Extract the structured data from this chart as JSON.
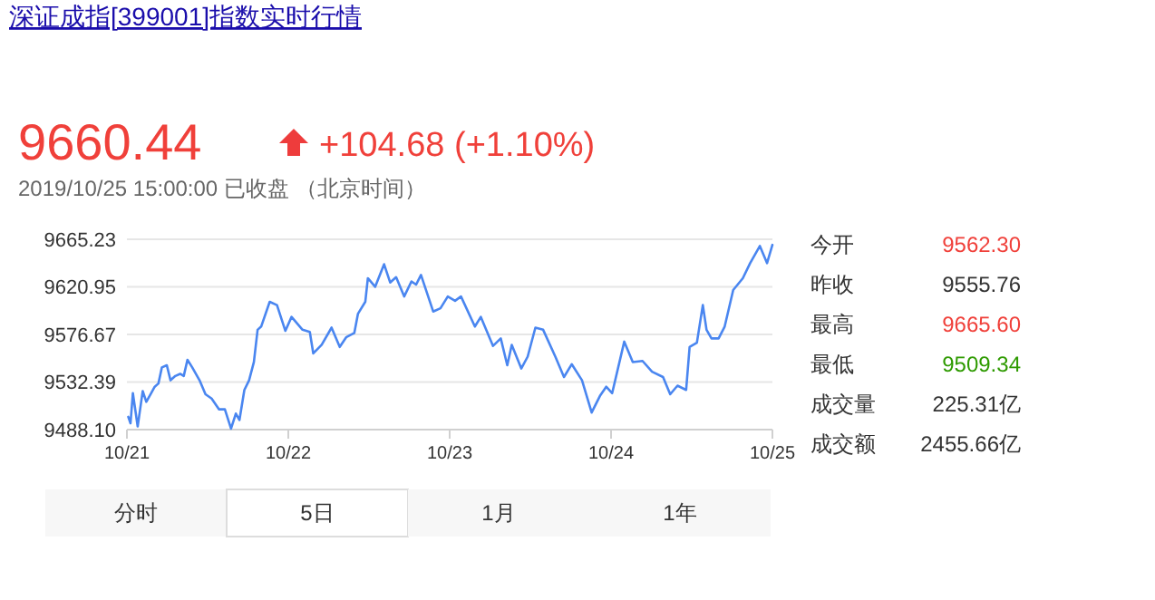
{
  "chart_data": {
    "type": "line",
    "title": "深证成指[399001]指数实时行情",
    "annotations": [
      "9660.44",
      "+104.68 (+1.10%)",
      "2019/10/25 15:00:00  已收盘 （北京时间）",
      "今开",
      "9562.30",
      "昨收",
      "9555.76",
      "最高",
      "9665.60",
      "最低",
      "9509.34",
      "成交量",
      "225.31亿",
      "成交额",
      "2455.66亿",
      "分时",
      "5日",
      "1月",
      "1年"
    ],
    "x": [
      "2019-10-21T00:12",
      "2019-10-21T00:32",
      "2019-10-21T00:53",
      "2019-10-21T01:36",
      "2019-10-21T02:21",
      "2019-10-21T02:53",
      "2019-10-21T03:36",
      "2019-10-21T04:08",
      "2019-10-21T04:41",
      "2019-10-21T05:12",
      "2019-10-21T05:56",
      "2019-10-21T06:29",
      "2019-10-21T07:12",
      "2019-10-21T07:55",
      "2019-10-21T08:27",
      "2019-10-21T09:00",
      "2019-10-21T09:43",
      "2019-10-21T10:48",
      "2019-10-21T11:41",
      "2019-10-21T12:36",
      "2019-10-21T13:41",
      "2019-10-21T14:34",
      "2019-10-21T15:29",
      "2019-10-21T16:12",
      "2019-10-21T16:44",
      "2019-10-21T17:28",
      "2019-10-21T18:10",
      "2019-10-21T18:53",
      "2019-10-21T19:26",
      "2019-10-21T19:58",
      "2019-10-21T21:14",
      "2019-10-21T22:19",
      "2019-10-21T23:34",
      "2019-10-22T00:29",
      "2019-10-22T02:07",
      "2019-10-22T03:12",
      "2019-10-22T03:43",
      "2019-10-22T04:58",
      "2019-10-22T06:26",
      "2019-10-22T07:39",
      "2019-10-22T08:36",
      "2019-10-22T09:49",
      "2019-10-22T10:22",
      "2019-10-22T11:27",
      "2019-10-22T11:50",
      "2019-10-22T12:55",
      "2019-10-22T14:15",
      "2019-10-22T15:09",
      "2019-10-22T16:02",
      "2019-10-22T17:14",
      "2019-10-22T18:19",
      "2019-10-22T19:00",
      "2019-10-22T19:44",
      "2019-10-22T21:33",
      "2019-10-22T22:38",
      "2019-10-22T23:43",
      "2019-10-23T00:48",
      "2019-10-23T01:41",
      "2019-10-23T03:45",
      "2019-10-23T04:38",
      "2019-10-23T06:27",
      "2019-10-23T07:36",
      "2019-10-23T08:34",
      "2019-10-23T09:14",
      "2019-10-23T10:39",
      "2019-10-23T11:36",
      "2019-10-23T12:45",
      "2019-10-23T13:54",
      "2019-10-23T15:43",
      "2019-10-23T17:00",
      "2019-10-23T18:09",
      "2019-10-23T19:41",
      "2019-10-23T21:07",
      "2019-10-23T22:24",
      "2019-10-23T23:17",
      "2019-10-24T00:10",
      "2019-10-24T01:58",
      "2019-10-24T03:14",
      "2019-10-24T04:41",
      "2019-10-24T06:06",
      "2019-10-24T07:44",
      "2019-10-24T08:48",
      "2019-10-24T09:53",
      "2019-10-24T11:10",
      "2019-10-24T11:41",
      "2019-10-24T12:46",
      "2019-10-24T13:39",
      "2019-10-24T14:12",
      "2019-10-24T14:56",
      "2019-10-24T16:00",
      "2019-10-24T16:54",
      "2019-10-24T18:10",
      "2019-10-24T19:36",
      "2019-10-24T20:41",
      "2019-10-24T22:08",
      "2019-10-24T23:12",
      "2019-10-25T00:00"
    ],
    "series": [
      {
        "color": "#4a86f0",
        "values": [
          9500,
          9494,
          9522,
          9491,
          9524,
          9514,
          9522,
          9528,
          9531,
          9546,
          9548,
          9534,
          9538,
          9540,
          9538,
          9553,
          9546,
          9534,
          9521,
          9517,
          9507,
          9507,
          9489,
          9503,
          9497,
          9525,
          9534,
          9551,
          9581,
          9584,
          9607,
          9604,
          9580,
          9593,
          9581,
          9579,
          9559,
          9567,
          9583,
          9565,
          9574,
          9578,
          9596,
          9607,
          9629,
          9621,
          9642,
          9625,
          9630,
          9612,
          9626,
          9623,
          9632,
          9598,
          9601,
          9612,
          9608,
          9612,
          9584,
          9593,
          9566,
          9573,
          9548,
          9567,
          9545,
          9556,
          9583,
          9581,
          9556,
          9537,
          9549,
          9534,
          9504,
          9520,
          9528,
          9522,
          9570,
          9551,
          9552,
          9542,
          9537,
          9521,
          9529,
          9525,
          9565,
          9569,
          9604,
          9581,
          9573,
          9573,
          9584,
          9618,
          9629,
          9643,
          9659,
          9643,
          9660
        ]
      }
    ],
    "xlim": [
      "2019-10-21",
      "2019-10-25"
    ],
    "ylim": [
      9488.1,
      9665.23
    ],
    "xticks": [
      {
        "value": "2019-10-21",
        "label": "10/21"
      },
      {
        "value": "2019-10-22",
        "label": "10/22"
      },
      {
        "value": "2019-10-23",
        "label": "10/23"
      },
      {
        "value": "2019-10-24",
        "label": "10/24"
      },
      {
        "value": "2019-10-25",
        "label": "10/25"
      }
    ],
    "yticks": [
      {
        "value": 9488.1,
        "label": "9488.10"
      },
      9532.39,
      9576.67,
      9620.95,
      9665.23
    ],
    "grid": "y"
  }
}
